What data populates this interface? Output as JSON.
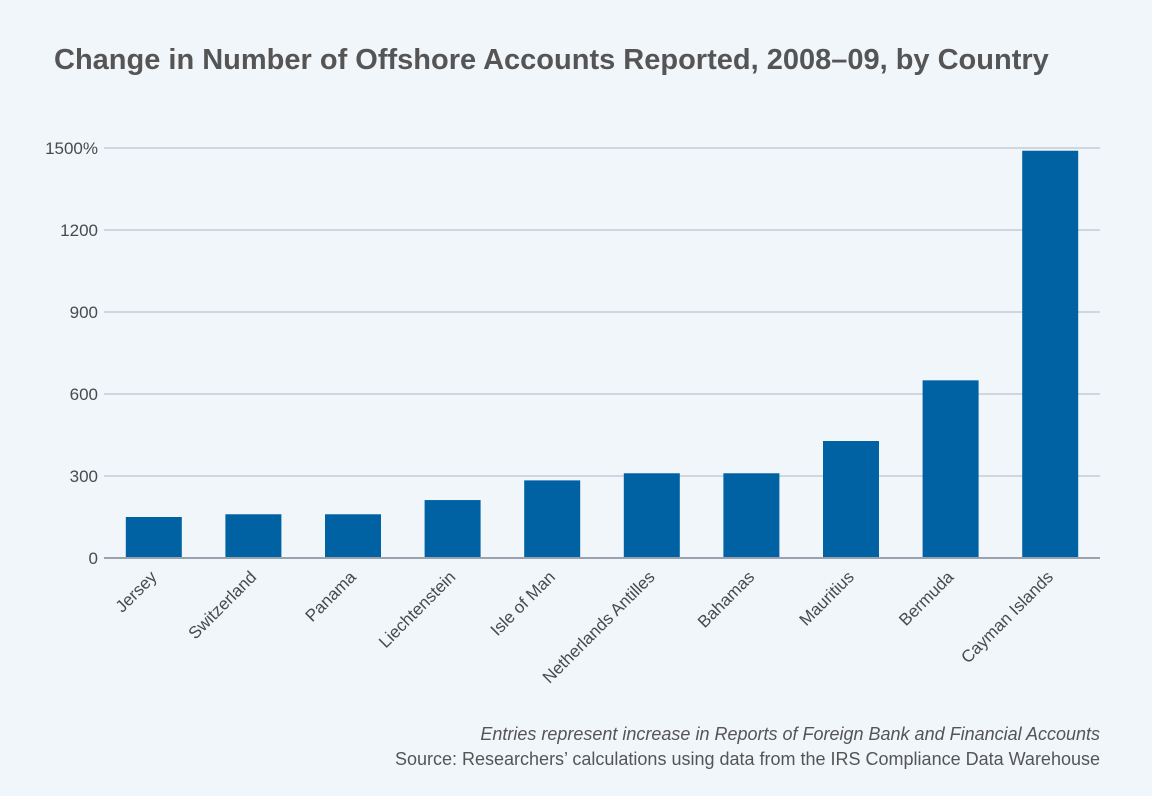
{
  "title": "Change in Number of Offshore Accounts Reported, 2008–09, by Country",
  "footnote": "Entries represent increase in Reports of Foreign Bank and Financial Accounts",
  "source": "Source: Researchers’ calculations using data from the IRS Compliance Data Warehouse",
  "colors": {
    "bar": "#0062a3",
    "grid": "#c4ccd8",
    "axis": "#9aa2ad",
    "text": "#4a4a4a"
  },
  "chart_data": {
    "type": "bar",
    "categories": [
      "Jersey",
      "Switzerland",
      "Panama",
      "Liechtenstein",
      "Isle of Man",
      "Netherlands Antilles",
      "Bahamas",
      "Mauritius",
      "Bermuda",
      "Cayman Islands"
    ],
    "values": [
      150,
      160,
      160,
      212,
      284,
      310,
      310,
      428,
      650,
      1490
    ],
    "ylim": [
      0,
      1500
    ],
    "yticks": [
      0,
      300,
      600,
      900,
      1200,
      1500
    ],
    "ytick_labels": [
      "0",
      "300",
      "600",
      "900",
      "1200",
      "1500%"
    ],
    "xlabel": "",
    "ylabel": "",
    "grid": true
  }
}
